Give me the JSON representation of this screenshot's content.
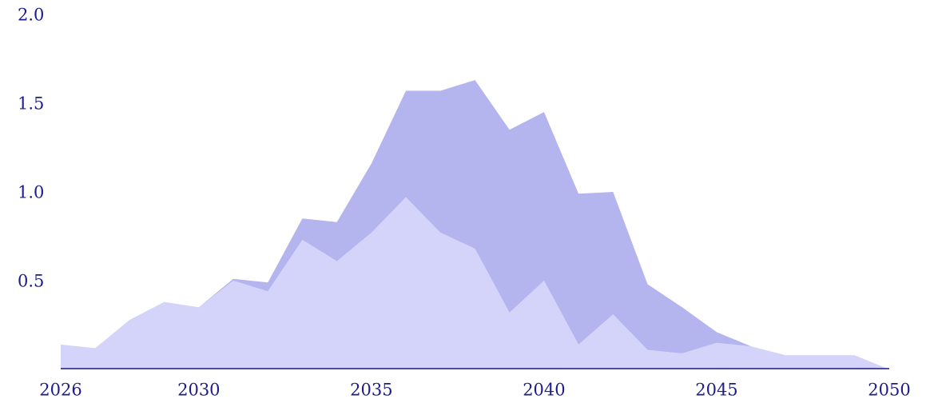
{
  "chart_data": {
    "type": "stacked_area",
    "x": [
      2026,
      2027,
      2028,
      2029,
      2030,
      2031,
      2032,
      2033,
      2034,
      2035,
      2036,
      2037,
      2038,
      2039,
      2040,
      2041,
      2042,
      2043,
      2044,
      2045,
      2046,
      2047,
      2048,
      2049,
      2050
    ],
    "series": [
      {
        "color": "#d4d4fa",
        "values": [
          0.14,
          0.12,
          0.28,
          0.38,
          0.35,
          0.5,
          0.44,
          0.73,
          0.61,
          0.77,
          0.97,
          0.77,
          0.68,
          0.32,
          0.5,
          0.14,
          0.31,
          0.11,
          0.09,
          0.15,
          0.13,
          0.08,
          0.08,
          0.08,
          0.0
        ]
      },
      {
        "color": "#b4b4ee",
        "values": [
          0,
          0,
          0,
          0,
          0,
          0.01,
          0.05,
          0.12,
          0.22,
          0.39,
          0.6,
          0.8,
          0.95,
          1.03,
          0.95,
          0.85,
          0.69,
          0.37,
          0.26,
          0.06,
          0,
          0,
          0,
          0,
          0
        ]
      }
    ],
    "xlim": [
      2026,
      2050
    ],
    "xticks": [
      2026,
      2030,
      2035,
      2040,
      2045,
      2050
    ],
    "ylim": [
      0,
      2
    ],
    "yticks": [
      0.5,
      {
        "value": 1,
        "label": "1.0"
      },
      1.5,
      {
        "value": 2,
        "label": "2.0"
      }
    ]
  }
}
